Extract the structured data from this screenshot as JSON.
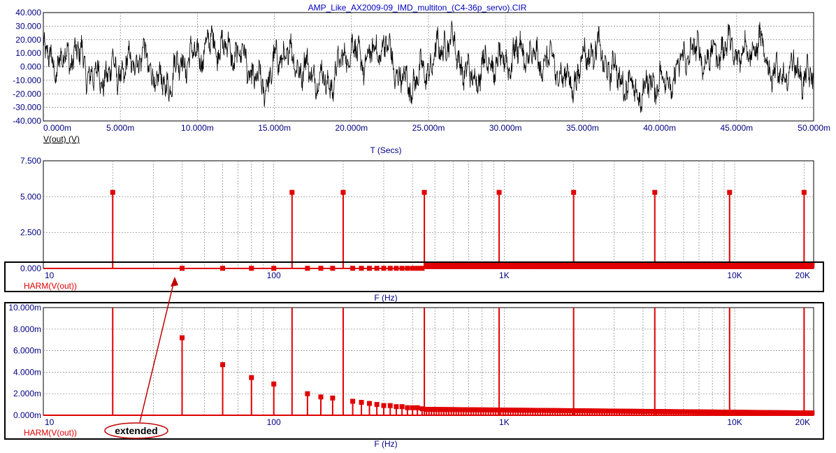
{
  "window": {
    "title": "AMP_Like_AX2009-09_IMD_multiton_(C4-36p_servo).CIR"
  },
  "colors": {
    "trace_time": "#000000",
    "trace_spectrum": "#e00000",
    "axis_text": "#000080",
    "title_text": "#0000c0",
    "grid": "#808080",
    "annotation": "#c00000"
  },
  "annotation": {
    "label": "extended",
    "shape": "ellipse",
    "arrow_from": "label",
    "arrow_to": "lower-harmonic-region-of-middle-plot"
  },
  "chart_data": [
    {
      "type": "line",
      "id": "time",
      "trace_label": "V(out) (V)",
      "xlabel": "T (Secs)",
      "xlim": [
        0,
        0.05
      ],
      "ylim": [
        -40,
        40
      ],
      "x_scale": "linear",
      "grid": true,
      "x_ticks": [
        "0.000m",
        "5.000m",
        "10.000m",
        "15.000m",
        "20.000m",
        "25.000m",
        "30.000m",
        "35.000m",
        "40.000m",
        "45.000m",
        "50.000m"
      ],
      "y_ticks": [
        "40.000",
        "30.000",
        "20.000",
        "10.000",
        "0.000",
        "-10.000",
        "-20.000",
        "-30.000",
        "-40.000"
      ],
      "signal": "multitone noise-like waveform, approx ±30 V, slow envelope between about -33 and +33",
      "envelope_samples": {
        "t_ms": [
          0,
          2,
          4,
          6,
          8,
          10,
          12,
          14,
          16,
          18,
          20,
          22,
          24,
          26,
          28,
          30,
          32,
          34,
          36,
          38,
          40,
          42,
          44,
          46,
          48,
          50
        ],
        "v": [
          10,
          12,
          -15,
          10,
          -20,
          22,
          28,
          -18,
          15,
          -22,
          15,
          20,
          -25,
          30,
          -10,
          12,
          15,
          -15,
          20,
          -30,
          -25,
          15,
          20,
          25,
          -10,
          -10
        ]
      }
    },
    {
      "type": "bar",
      "id": "spectrum",
      "trace_label": "HARM(V(out))",
      "xlabel": "F (Hz)",
      "x_scale": "log",
      "xlim": [
        10,
        22000
      ],
      "ylim": [
        0,
        7.5
      ],
      "grid": true,
      "x_ticks": [
        "10",
        "100",
        "1K",
        "10K",
        "20K"
      ],
      "y_ticks": [
        "7.500",
        "5.000",
        "2.500",
        "0.000"
      ],
      "tones_hz": [
        20,
        120,
        200,
        450,
        950,
        2000,
        4500,
        9500,
        20000
      ],
      "tone_amplitude": 5.3,
      "harmonics_hz": [
        40,
        60,
        80,
        100,
        140,
        160,
        180,
        220,
        240,
        260,
        280,
        300,
        320,
        340,
        360,
        380,
        400,
        420,
        440
      ],
      "harmonics_amplitude": 0.01
    },
    {
      "type": "bar",
      "id": "spectrum_extended",
      "trace_label": "HARM(V(out))",
      "xlabel": "F (Hz)",
      "x_scale": "log",
      "xlim": [
        10,
        22000
      ],
      "ylim": [
        0,
        0.01
      ],
      "grid": true,
      "x_ticks": [
        "10",
        "100",
        "1K",
        "10K",
        "20K"
      ],
      "y_ticks": [
        "10.000m",
        "8.000m",
        "6.000m",
        "4.000m",
        "2.000m",
        "0.000m"
      ],
      "tones_hz": [
        20,
        120,
        200,
        450,
        950,
        2000,
        4500,
        9500,
        20000
      ],
      "tone_amplitude": 5.3,
      "harmonics": {
        "hz": [
          40,
          60,
          80,
          100,
          140,
          160,
          180,
          220,
          240,
          260,
          280,
          300,
          320,
          340,
          360,
          380,
          400,
          420,
          440
        ],
        "value": [
          0.0072,
          0.0047,
          0.0035,
          0.0029,
          0.002,
          0.0017,
          0.0016,
          0.0013,
          0.0012,
          0.0011,
          0.001,
          0.0009,
          0.0009,
          0.0008,
          0.0008,
          0.0007,
          0.0007,
          0.0007,
          0.0006
        ]
      }
    }
  ]
}
